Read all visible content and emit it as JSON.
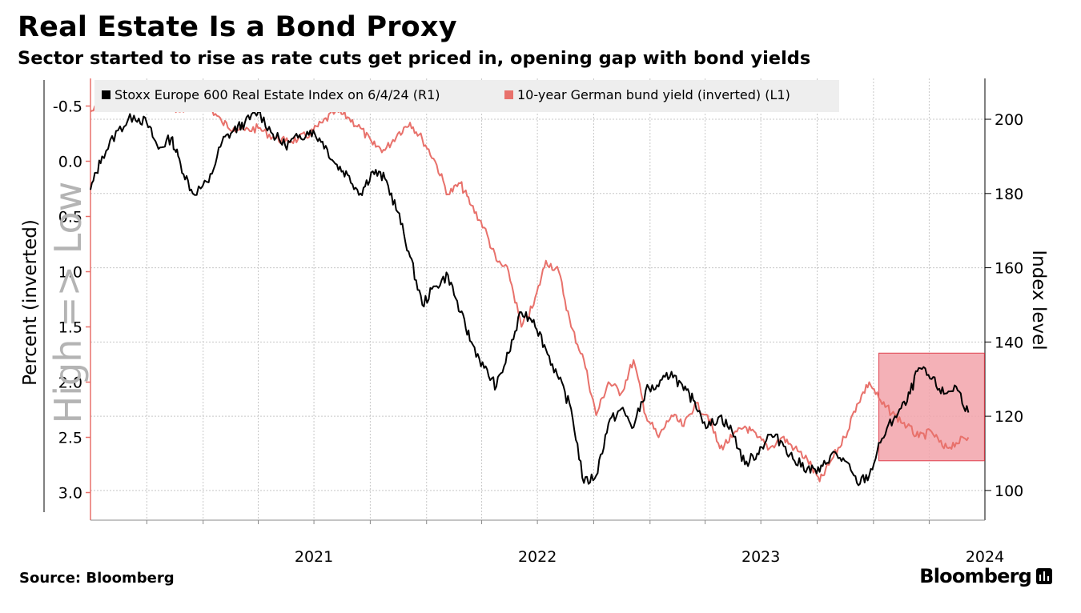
{
  "header": {
    "title": "Real Estate Is a Bond Proxy",
    "subtitle": "Sector started to rise as rate cuts get priced in, opening gap with bond yields"
  },
  "footer": {
    "source": "Source: Bloomberg",
    "brand": "Bloomberg"
  },
  "colors": {
    "index_line": "#000000",
    "yield_line": "#e8716b",
    "highlight_fill": "#f2a3aa",
    "highlight_stroke": "#e0414f",
    "grid": "#c8c8c8",
    "legend_bg": "#eeeeee",
    "watermark": "#b4b4b4"
  },
  "chart_data": {
    "type": "line",
    "legend": [
      "Stoxx Europe 600 Real Estate Index on 6/4/24 (R1)",
      "10-year German bund yield (inverted) (L1)"
    ],
    "legend_placement": "top-left",
    "left_axis": {
      "label": "Percent (inverted)",
      "inverted": true,
      "range": [
        -0.75,
        3.25
      ],
      "ticks": [
        "-0.5",
        "0.0",
        "0.5",
        "1.0",
        "1.5",
        "2.0",
        "2.5",
        "3.0"
      ]
    },
    "right_axis": {
      "label": "Index level",
      "range": [
        92,
        211
      ],
      "ticks": [
        "100",
        "120",
        "140",
        "160",
        "180",
        "200"
      ]
    },
    "watermark": "High => Low",
    "x_range": [
      "2020-07-01",
      "2024-07-01"
    ],
    "x_ticks": [
      "2021",
      "2022",
      "2023",
      "2024"
    ],
    "grid": true,
    "highlight": {
      "x_range": [
        "2024-01-15",
        "2024-06-04"
      ],
      "y_range_index": [
        108,
        137
      ]
    },
    "series": [
      {
        "name": "Stoxx Europe 600 Real Estate Index on 6/4/24 (R1)",
        "axis": "right",
        "dates": [
          "2020-07-01",
          "2020-07-20",
          "2020-08-15",
          "2020-09-10",
          "2020-10-01",
          "2020-10-20",
          "2020-11-10",
          "2020-11-25",
          "2020-12-15",
          "2021-01-10",
          "2021-02-01",
          "2021-02-20",
          "2021-03-10",
          "2021-04-01",
          "2021-04-25",
          "2021-05-15",
          "2021-06-05",
          "2021-06-25",
          "2021-07-15",
          "2021-08-05",
          "2021-08-25",
          "2021-09-15",
          "2021-10-05",
          "2021-10-25",
          "2021-11-15",
          "2021-12-05",
          "2021-12-25",
          "2022-01-15",
          "2022-02-05",
          "2022-02-25",
          "2022-03-15",
          "2022-04-05",
          "2022-04-25",
          "2022-05-15",
          "2022-06-05",
          "2022-06-25",
          "2022-07-15",
          "2022-08-05",
          "2022-08-25",
          "2022-09-15",
          "2022-10-05",
          "2022-10-25",
          "2022-11-15",
          "2022-12-05",
          "2022-12-25",
          "2023-01-15",
          "2023-02-05",
          "2023-02-25",
          "2023-03-15",
          "2023-04-05",
          "2023-04-25",
          "2023-05-15",
          "2023-06-05",
          "2023-06-25",
          "2023-07-15",
          "2023-08-05",
          "2023-08-25",
          "2023-09-15",
          "2023-10-05",
          "2023-10-25",
          "2023-11-15",
          "2023-12-05",
          "2023-12-25",
          "2024-01-15",
          "2024-02-05",
          "2024-02-25",
          "2024-03-15",
          "2024-04-05",
          "2024-04-25",
          "2024-05-15",
          "2024-06-04"
        ],
        "values": [
          181,
          190,
          197,
          201,
          199,
          192,
          195,
          188,
          180,
          183,
          194,
          197,
          199,
          202,
          196,
          193,
          195,
          197,
          194,
          188,
          185,
          180,
          186,
          184,
          175,
          163,
          150,
          155,
          158,
          148,
          140,
          133,
          128,
          137,
          148,
          146,
          138,
          130,
          122,
          102,
          104,
          118,
          122,
          117,
          127,
          128,
          132,
          127,
          124,
          117,
          120,
          116,
          107,
          110,
          115,
          113,
          108,
          106,
          105,
          110,
          108,
          102,
          104,
          114,
          120,
          124,
          133,
          130,
          126,
          128,
          121
        ]
      },
      {
        "name": "10-year German bund yield (inverted) (L1)",
        "axis": "left",
        "dates": [
          "2020-07-01",
          "2020-07-20",
          "2020-08-15",
          "2020-09-10",
          "2020-10-01",
          "2020-10-20",
          "2020-11-10",
          "2020-11-25",
          "2020-12-15",
          "2021-01-10",
          "2021-02-01",
          "2021-02-20",
          "2021-03-10",
          "2021-04-01",
          "2021-04-25",
          "2021-05-15",
          "2021-06-05",
          "2021-06-25",
          "2021-07-15",
          "2021-08-05",
          "2021-08-25",
          "2021-09-15",
          "2021-10-05",
          "2021-10-25",
          "2021-11-15",
          "2021-12-05",
          "2021-12-25",
          "2022-01-15",
          "2022-02-05",
          "2022-02-25",
          "2022-03-15",
          "2022-04-05",
          "2022-04-25",
          "2022-05-15",
          "2022-06-05",
          "2022-06-25",
          "2022-07-15",
          "2022-08-05",
          "2022-08-25",
          "2022-09-15",
          "2022-10-05",
          "2022-10-25",
          "2022-11-15",
          "2022-12-05",
          "2022-12-25",
          "2023-01-15",
          "2023-02-05",
          "2023-02-25",
          "2023-03-15",
          "2023-04-05",
          "2023-04-25",
          "2023-05-15",
          "2023-06-05",
          "2023-06-25",
          "2023-07-15",
          "2023-08-05",
          "2023-08-25",
          "2023-09-15",
          "2023-10-05",
          "2023-10-25",
          "2023-11-15",
          "2023-12-05",
          "2023-12-25",
          "2024-01-15",
          "2024-02-05",
          "2024-02-25",
          "2024-03-15",
          "2024-04-05",
          "2024-04-25",
          "2024-05-15",
          "2024-06-04"
        ],
        "values": [
          -0.45,
          -0.5,
          -0.48,
          -0.52,
          -0.58,
          -0.55,
          -0.5,
          -0.45,
          -0.52,
          -0.5,
          -0.35,
          -0.3,
          -0.28,
          -0.3,
          -0.22,
          -0.18,
          -0.2,
          -0.25,
          -0.35,
          -0.45,
          -0.4,
          -0.3,
          -0.15,
          -0.1,
          -0.25,
          -0.35,
          -0.2,
          0.0,
          0.3,
          0.2,
          0.4,
          0.6,
          0.9,
          1.0,
          1.5,
          1.3,
          0.9,
          1.0,
          1.5,
          1.8,
          2.3,
          2.0,
          2.1,
          1.8,
          2.3,
          2.5,
          2.3,
          2.4,
          2.2,
          2.3,
          2.6,
          2.5,
          2.4,
          2.5,
          2.6,
          2.5,
          2.6,
          2.7,
          2.9,
          2.7,
          2.5,
          2.2,
          2.0,
          2.2,
          2.3,
          2.4,
          2.5,
          2.45,
          2.6,
          2.55,
          2.5
        ]
      }
    ]
  }
}
